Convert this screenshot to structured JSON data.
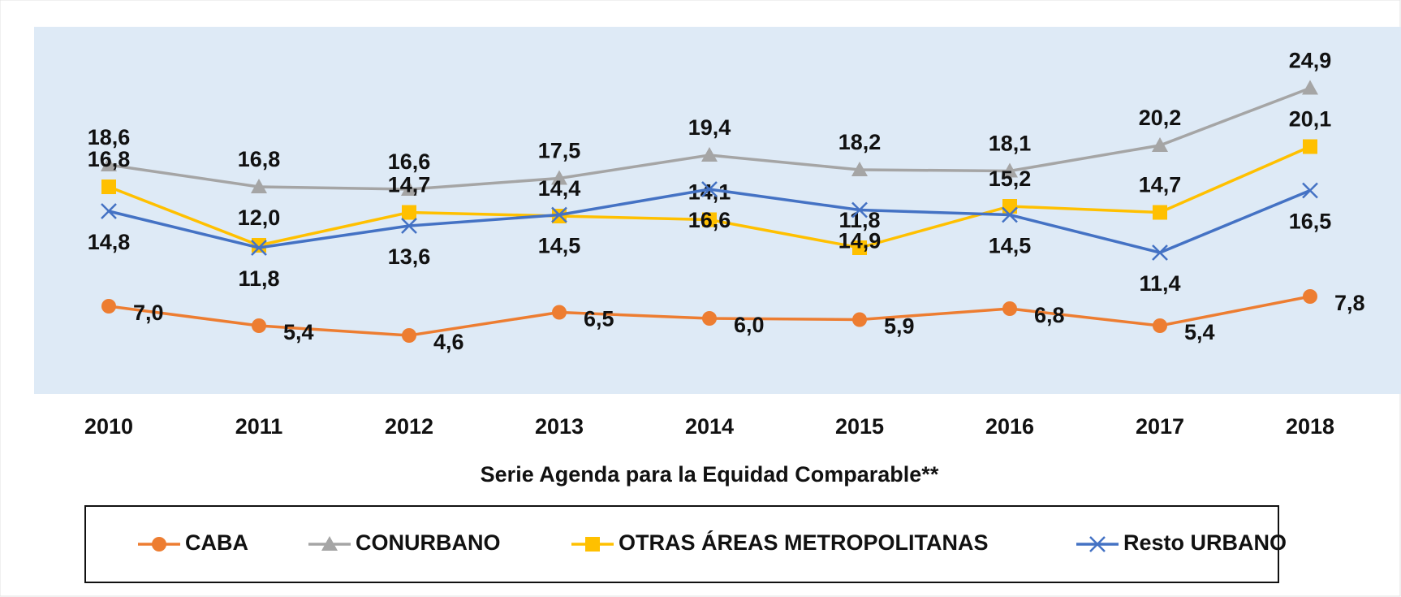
{
  "chart_data": {
    "type": "line",
    "x_label": "Serie Agenda para la Equidad Comparable**",
    "categories": [
      "2010",
      "2011",
      "2012",
      "2013",
      "2014",
      "2015",
      "2016",
      "2017",
      "2018"
    ],
    "series": [
      {
        "name": "CABA",
        "color": "#ed7d31",
        "marker": "circle",
        "values": [
          7.0,
          5.4,
          4.6,
          6.5,
          6.0,
          5.9,
          6.8,
          5.4,
          7.8
        ],
        "value_labels": [
          "7,0",
          "5,4",
          "4,6",
          "6,5",
          "6,0",
          "5,9",
          "6,8",
          "5,4",
          "7,8"
        ]
      },
      {
        "name": "CONURBANO",
        "color": "#a5a5a5",
        "marker": "triangle",
        "values": [
          18.6,
          16.8,
          16.6,
          17.5,
          19.4,
          18.2,
          18.1,
          20.2,
          24.9
        ],
        "value_labels": [
          "18,6",
          "16,8",
          "16,6",
          "17,5",
          "19,4",
          "18,2",
          "18,1",
          "20,2",
          "24,9"
        ]
      },
      {
        "name": "OTRAS ÁREAS METROPOLITANAS",
        "color": "#ffc000",
        "marker": "square",
        "values": [
          16.8,
          12.0,
          14.7,
          14.4,
          14.1,
          11.8,
          15.2,
          14.7,
          20.1
        ],
        "value_labels": [
          "16,8",
          "12,0",
          "14,7",
          "14,4",
          "14,1",
          "11,8",
          "15,2",
          "14,7",
          "20,1"
        ]
      },
      {
        "name": "Resto URBANO",
        "color": "#4472c4",
        "marker": "x",
        "values": [
          14.8,
          11.8,
          13.6,
          14.5,
          16.6,
          14.9,
          14.5,
          11.4,
          16.5
        ],
        "value_labels": [
          "14,8",
          "11,8",
          "13,6",
          "14,5",
          "16,6",
          "14,9",
          "14,5",
          "11,4",
          "16,5"
        ]
      }
    ],
    "legend": "bottom"
  }
}
